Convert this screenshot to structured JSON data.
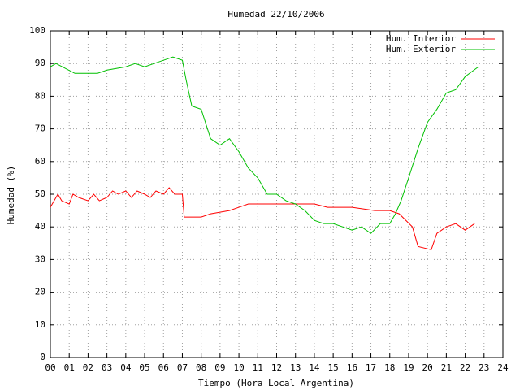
{
  "chart_data": {
    "type": "line",
    "title": "Humedad 22/10/2006",
    "x_label": "Tiempo (Hora Local Argentina)",
    "y_label": "Humedad (%)",
    "xlim": [
      0,
      24
    ],
    "xticks": [
      {
        "value": 0,
        "label": "00"
      },
      {
        "value": 1,
        "label": "01"
      },
      {
        "value": 2,
        "label": "02"
      },
      {
        "value": 3,
        "label": "03"
      },
      {
        "value": 4,
        "label": "04"
      },
      {
        "value": 5,
        "label": "05"
      },
      {
        "value": 6,
        "label": "06"
      },
      {
        "value": 7,
        "label": "07"
      },
      {
        "value": 8,
        "label": "08"
      },
      {
        "value": 9,
        "label": "09"
      },
      10,
      11,
      12,
      13,
      14,
      15,
      16,
      17,
      18,
      19,
      20,
      21,
      22,
      23,
      24
    ],
    "ylim": [
      0,
      100
    ],
    "yticks": [
      0,
      10,
      20,
      30,
      40,
      50,
      60,
      70,
      80,
      90,
      100
    ],
    "grid": true,
    "legend": "top-right",
    "series": [
      {
        "name": "Hum. Interior",
        "color": "#ff0000",
        "x": [
          0,
          0.2,
          0.4,
          0.6,
          1,
          1.2,
          1.5,
          2,
          2.3,
          2.6,
          3,
          3.3,
          3.6,
          4,
          4.3,
          4.6,
          5,
          5.3,
          5.6,
          6,
          6.3,
          6.6,
          7,
          7.1,
          7.5,
          8,
          8.5,
          9.5,
          10,
          10.5,
          12,
          14,
          14.7,
          16,
          17.2,
          18,
          18.5,
          19.2,
          19.5,
          20.2,
          20.5,
          21,
          21.5,
          22,
          22.5
        ],
        "values": [
          46,
          48,
          50,
          48,
          47,
          50,
          49,
          48,
          50,
          48,
          49,
          51,
          50,
          51,
          49,
          51,
          50,
          49,
          51,
          50,
          52,
          50,
          50,
          43,
          43,
          43,
          44,
          45,
          46,
          47,
          47,
          47,
          46,
          46,
          45,
          45,
          44,
          40,
          34,
          33,
          38,
          40,
          41,
          39,
          41
        ]
      },
      {
        "name": "Hum. Exterior",
        "color": "#00c000",
        "x": [
          0,
          0.3,
          1.3,
          2.5,
          3,
          4,
          4.5,
          5,
          5.5,
          6,
          6.5,
          7,
          7.2,
          7.5,
          8,
          8.5,
          9,
          9.5,
          10,
          10.5,
          11,
          11.5,
          12,
          12.5,
          13,
          13.5,
          14,
          14.5,
          15,
          15.5,
          16,
          16.5,
          17,
          17.5,
          18,
          18.3,
          18.6,
          19,
          19.5,
          20,
          20.5,
          21,
          21.5,
          22,
          22.7
        ],
        "values": [
          89,
          90,
          87,
          87,
          88,
          89,
          90,
          89,
          90,
          91,
          92,
          91,
          85,
          77,
          76,
          67,
          65,
          67,
          63,
          58,
          55,
          50,
          50,
          48,
          47,
          45,
          42,
          41,
          41,
          40,
          39,
          40,
          38,
          41,
          41,
          44,
          48,
          55,
          64,
          72,
          76,
          81,
          82,
          86,
          89
        ]
      }
    ]
  }
}
